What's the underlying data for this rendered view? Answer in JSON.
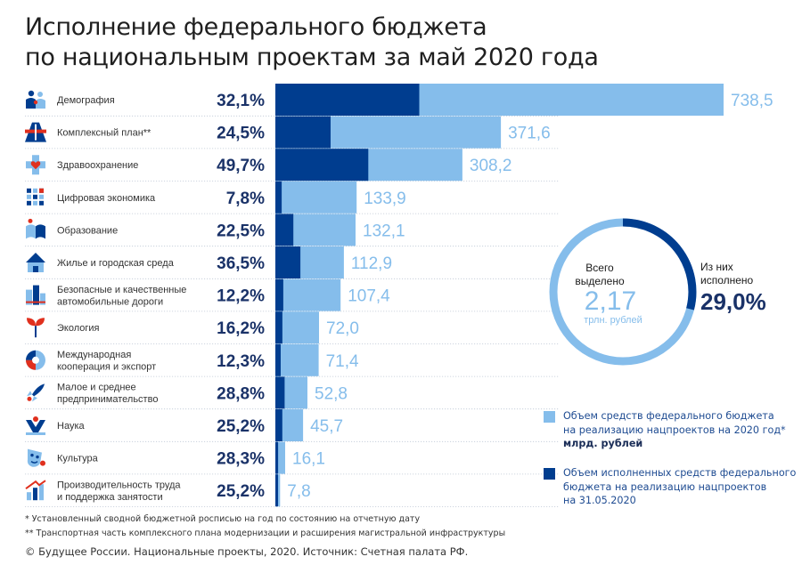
{
  "title": {
    "line1": "Исполнение федерального бюджета",
    "line2": "по национальным проектам за май 2020 года"
  },
  "colors": {
    "allocated": "#85bdeb",
    "executed": "#003d8f",
    "pct_text": "#1a3268",
    "value_text": "#85bdeb",
    "label_text": "#333333"
  },
  "chart_data": {
    "type": "bar",
    "orientation": "horizontal",
    "categories": [
      {
        "label": [
          "Демография"
        ],
        "icon": "family-icon"
      },
      {
        "label": [
          "Комплексный план**"
        ],
        "icon": "road-icon"
      },
      {
        "label": [
          "Здравоохранение"
        ],
        "icon": "medical-cross-icon"
      },
      {
        "label": [
          "Цифровая экономика"
        ],
        "icon": "digital-icon"
      },
      {
        "label": [
          "Образование"
        ],
        "icon": "book-icon"
      },
      {
        "label": [
          "Жилье и городская среда"
        ],
        "icon": "house-icon"
      },
      {
        "label": [
          "Безопасные и качественные",
          "автомобильные дороги"
        ],
        "icon": "city-road-icon"
      },
      {
        "label": [
          "Экология"
        ],
        "icon": "leaf-icon"
      },
      {
        "label": [
          "Международная",
          "кооперация и экспорт"
        ],
        "icon": "globe-icon"
      },
      {
        "label": [
          "Малое и среднее",
          "предпринимательство"
        ],
        "icon": "rocket-icon"
      },
      {
        "label": [
          "Наука"
        ],
        "icon": "science-icon"
      },
      {
        "label": [
          "Культура"
        ],
        "icon": "theater-icon"
      },
      {
        "label": [
          "Производительность труда",
          "и поддержка занятости"
        ],
        "icon": "growth-icon"
      }
    ],
    "series": [
      {
        "name": "Объем средств федерального бюджета на реализацию нацпроектов на 2020 год*",
        "values": [
          738.5,
          371.6,
          308.2,
          133.9,
          132.1,
          112.9,
          107.4,
          72.0,
          71.4,
          52.8,
          45.7,
          16.1,
          7.8
        ],
        "value_labels": [
          "738,5",
          "371,6",
          "308,2",
          "133,9",
          "132,1",
          "112,9",
          "107,4",
          "72,0",
          "71,4",
          "52,8",
          "45,7",
          "16,1",
          "7,8"
        ]
      },
      {
        "name": "Объем исполненных средств федерального бюджета на реализацию нацпроектов на 31.05.2020",
        "percent": [
          32.1,
          24.5,
          49.7,
          7.8,
          22.5,
          36.5,
          12.2,
          16.2,
          12.3,
          28.8,
          25.2,
          28.3,
          25.2
        ],
        "percent_labels": [
          "32,1%",
          "24,5%",
          "49,7%",
          "7,8%",
          "22,5%",
          "36,5%",
          "12,2%",
          "16,2%",
          "12,3%",
          "28,8%",
          "25,2%",
          "28,3%",
          "25,2%"
        ]
      }
    ],
    "xlim": [
      0,
      738.5
    ],
    "unit": "млрд. рублей",
    "summary": {
      "total_label": [
        "Всего",
        "выделено"
      ],
      "total_value": "2,17",
      "total_unit": "трлн. рублей",
      "executed_label": [
        "Из них",
        "исполнено"
      ],
      "executed_value": "29,0%",
      "executed_fraction": 0.29
    }
  },
  "legend": {
    "allocated": [
      "Объем средств федерального бюджета",
      "на реализацию нацпроектов на 2020 год*"
    ],
    "allocated_unit": "млрд. рублей",
    "executed": [
      "Объем исполненных средств федерального",
      "бюджета на реализацию нацпроектов",
      "на 31.05.2020"
    ]
  },
  "footnotes": [
    "* Установленный сводной бюджетной росписью на год по состоянию на отчетную дату",
    "** Транспортная часть комплексного плана модернизации и расширения магистральной инфраструктуры"
  ],
  "source": "© Будущее России. Национальные проекты, 2020. Источник: Счетная палата РФ."
}
